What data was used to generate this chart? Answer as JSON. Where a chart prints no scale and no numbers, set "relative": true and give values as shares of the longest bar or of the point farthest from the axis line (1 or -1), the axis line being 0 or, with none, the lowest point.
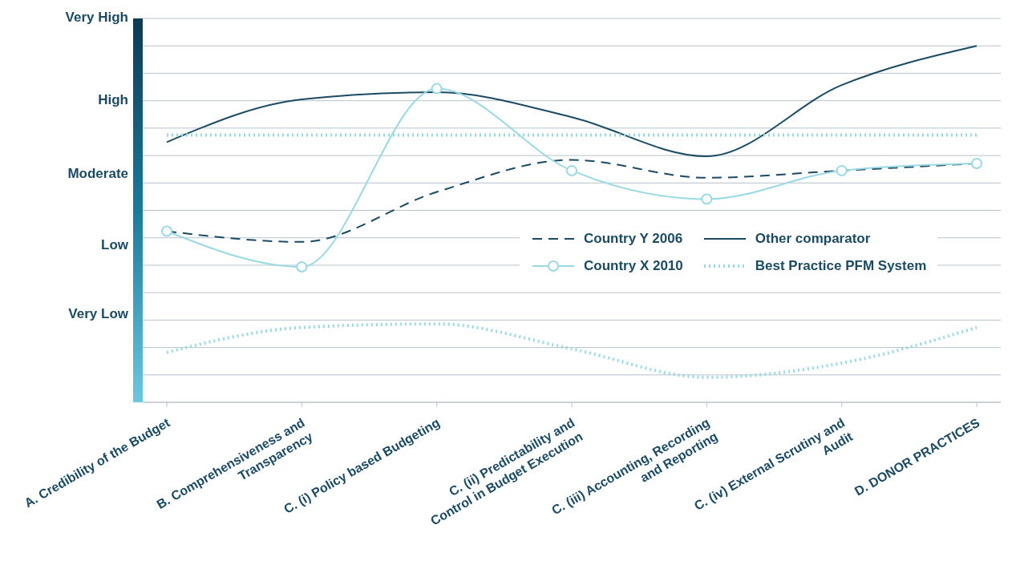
{
  "chart_data": {
    "type": "line",
    "relative": true,
    "categories": [
      "A. Credibility of the Budget",
      "B. Comprehensiveness and Transparency",
      "C. (i) Policy based Budgeting",
      "C. (ii) Predictability and Control in Budget Execution",
      "C. (iii) Accounting, Recording and Reporting",
      "C. (iv) External Scrutiny and Audit",
      "D. DONOR PRACTICES"
    ],
    "series": [
      {
        "name": "Country Y 2006",
        "color": "#1b4a63",
        "line_style": "dashed",
        "marker": "none",
        "values": [
          0.48,
          0.45,
          0.59,
          0.68,
          0.63,
          0.65,
          0.67
        ]
      },
      {
        "name": "Other comparator",
        "color": "#1b4a63",
        "line_style": "solid",
        "marker": "none",
        "values": [
          0.73,
          0.85,
          0.87,
          0.8,
          0.69,
          0.89,
          1
        ]
      },
      {
        "name": "Country X 2010",
        "color": "#9ad9e4",
        "line_style": "solid",
        "marker": "circle",
        "values": [
          0.48,
          0.38,
          0.88,
          0.65,
          0.57,
          0.65,
          0.67
        ]
      },
      {
        "name": "Best Practice PFM System",
        "color": "#9ad9e4",
        "line_style": "dotted",
        "marker": "none",
        "values": [
          0.75,
          0.75,
          0.75,
          0.75,
          0.75,
          0.75,
          0.75
        ]
      },
      {
        "color": "#9ad9e4",
        "line_style": "dotted",
        "marker": "none",
        "values": [
          0.14,
          0.21,
          0.22,
          0.15,
          0.07,
          0.11,
          0.21
        ]
      }
    ],
    "annotations": [
      "Very High",
      "High",
      "Moderate",
      "Low",
      "Very Low"
    ],
    "grid": "y",
    "legend": "right"
  }
}
